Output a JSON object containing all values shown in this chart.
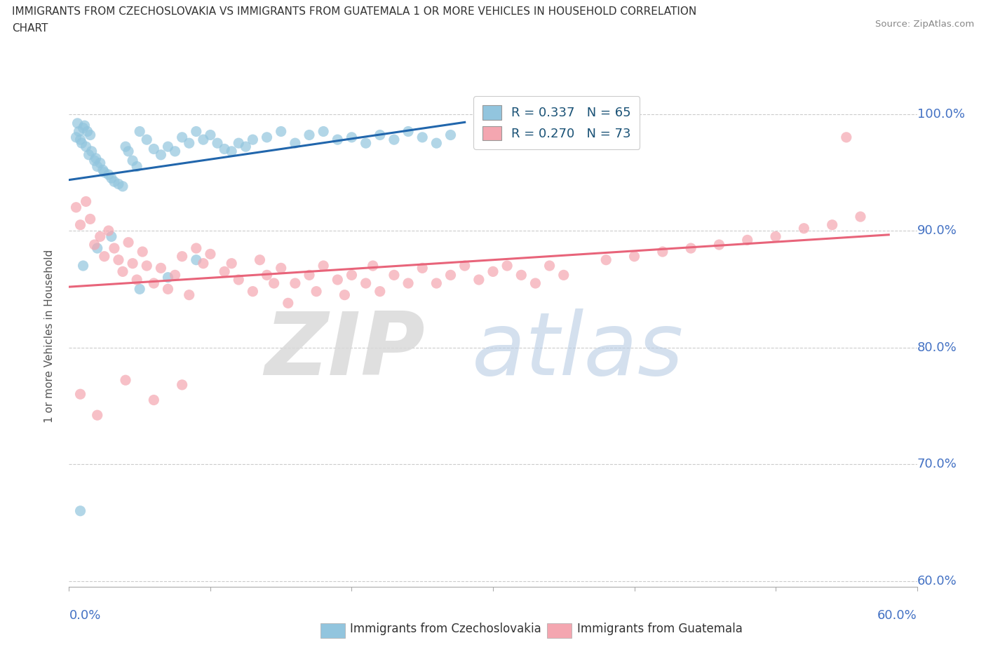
{
  "title_line1": "IMMIGRANTS FROM CZECHOSLOVAKIA VS IMMIGRANTS FROM GUATEMALA 1 OR MORE VEHICLES IN HOUSEHOLD CORRELATION",
  "title_line2": "CHART",
  "source": "Source: ZipAtlas.com",
  "ylabel": "1 or more Vehicles in Household",
  "ytick_labels": [
    "100.0%",
    "90.0%",
    "80.0%",
    "70.0%",
    "60.0%"
  ],
  "ytick_values": [
    1.0,
    0.9,
    0.8,
    0.7,
    0.6
  ],
  "xmin": 0.0,
  "xmax": 0.6,
  "ymin": 0.595,
  "ymax": 1.025,
  "r_czech": 0.337,
  "n_czech": 65,
  "r_guate": 0.27,
  "n_guate": 73,
  "czech_color": "#92c5de",
  "guate_color": "#f4a6b0",
  "czech_line_color": "#2166ac",
  "guate_line_color": "#e8647a",
  "legend_label_czech": "Immigrants from Czechoslovakia",
  "legend_label_guate": "Immigrants from Guatemala",
  "czech_x": [
    0.005,
    0.007,
    0.009,
    0.011,
    0.013,
    0.015,
    0.008,
    0.01,
    0.012,
    0.014,
    0.016,
    0.018,
    0.02,
    0.022,
    0.024,
    0.006,
    0.019,
    0.025,
    0.028,
    0.03,
    0.032,
    0.035,
    0.038,
    0.04,
    0.042,
    0.045,
    0.048,
    0.05,
    0.055,
    0.06,
    0.065,
    0.07,
    0.075,
    0.08,
    0.085,
    0.09,
    0.095,
    0.1,
    0.105,
    0.11,
    0.115,
    0.12,
    0.125,
    0.13,
    0.14,
    0.15,
    0.16,
    0.17,
    0.18,
    0.19,
    0.2,
    0.21,
    0.22,
    0.23,
    0.24,
    0.25,
    0.26,
    0.27,
    0.01,
    0.02,
    0.05,
    0.03,
    0.07,
    0.09,
    0.008
  ],
  "czech_y": [
    0.98,
    0.985,
    0.975,
    0.99,
    0.985,
    0.982,
    0.978,
    0.988,
    0.972,
    0.965,
    0.968,
    0.96,
    0.955,
    0.958,
    0.952,
    0.992,
    0.962,
    0.95,
    0.948,
    0.945,
    0.942,
    0.94,
    0.938,
    0.972,
    0.968,
    0.96,
    0.955,
    0.985,
    0.978,
    0.97,
    0.965,
    0.972,
    0.968,
    0.98,
    0.975,
    0.985,
    0.978,
    0.982,
    0.975,
    0.97,
    0.968,
    0.975,
    0.972,
    0.978,
    0.98,
    0.985,
    0.975,
    0.982,
    0.985,
    0.978,
    0.98,
    0.975,
    0.982,
    0.978,
    0.985,
    0.98,
    0.975,
    0.982,
    0.87,
    0.885,
    0.85,
    0.895,
    0.86,
    0.875,
    0.66
  ],
  "guate_x": [
    0.005,
    0.008,
    0.012,
    0.015,
    0.018,
    0.022,
    0.025,
    0.028,
    0.032,
    0.035,
    0.038,
    0.042,
    0.045,
    0.048,
    0.052,
    0.055,
    0.06,
    0.065,
    0.07,
    0.075,
    0.08,
    0.085,
    0.09,
    0.095,
    0.1,
    0.11,
    0.115,
    0.12,
    0.13,
    0.135,
    0.14,
    0.145,
    0.15,
    0.155,
    0.16,
    0.17,
    0.175,
    0.18,
    0.19,
    0.195,
    0.2,
    0.21,
    0.215,
    0.22,
    0.23,
    0.24,
    0.25,
    0.26,
    0.27,
    0.28,
    0.29,
    0.3,
    0.31,
    0.32,
    0.33,
    0.34,
    0.35,
    0.38,
    0.4,
    0.42,
    0.44,
    0.46,
    0.48,
    0.5,
    0.52,
    0.54,
    0.56,
    0.008,
    0.02,
    0.04,
    0.06,
    0.08,
    0.55
  ],
  "guate_y": [
    0.92,
    0.905,
    0.925,
    0.91,
    0.888,
    0.895,
    0.878,
    0.9,
    0.885,
    0.875,
    0.865,
    0.89,
    0.872,
    0.858,
    0.882,
    0.87,
    0.855,
    0.868,
    0.85,
    0.862,
    0.878,
    0.845,
    0.885,
    0.872,
    0.88,
    0.865,
    0.872,
    0.858,
    0.848,
    0.875,
    0.862,
    0.855,
    0.868,
    0.838,
    0.855,
    0.862,
    0.848,
    0.87,
    0.858,
    0.845,
    0.862,
    0.855,
    0.87,
    0.848,
    0.862,
    0.855,
    0.868,
    0.855,
    0.862,
    0.87,
    0.858,
    0.865,
    0.87,
    0.862,
    0.855,
    0.87,
    0.862,
    0.875,
    0.878,
    0.882,
    0.885,
    0.888,
    0.892,
    0.895,
    0.902,
    0.905,
    0.912,
    0.76,
    0.742,
    0.772,
    0.755,
    0.768,
    0.98
  ]
}
